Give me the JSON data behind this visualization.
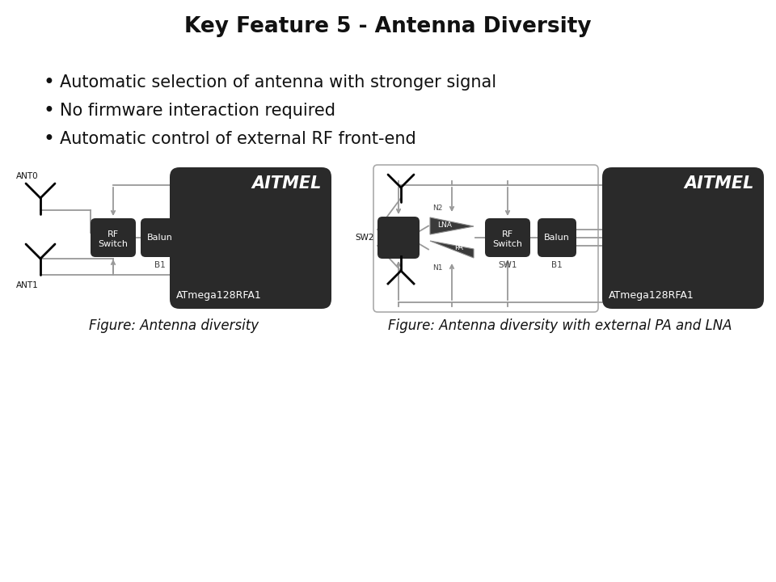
{
  "title": "Key Feature 5 - Antenna Diversity",
  "title_fontsize": 19,
  "bullets": [
    "Automatic selection of antenna with stronger signal",
    "No firmware interaction required",
    "Automatic control of external RF front-end"
  ],
  "bullet_fontsize": 15,
  "fig1_caption": "Figure: Antenna diversity",
  "fig2_caption": "Figure: Antenna diversity with external PA and LNA",
  "caption_fontsize": 12,
  "dark_box_color": "#2a2a2a",
  "medium_box_color": "#404040",
  "wire_color": "#999999",
  "text_white": "#ffffff",
  "text_black": "#111111",
  "bg_color": "#ffffff"
}
